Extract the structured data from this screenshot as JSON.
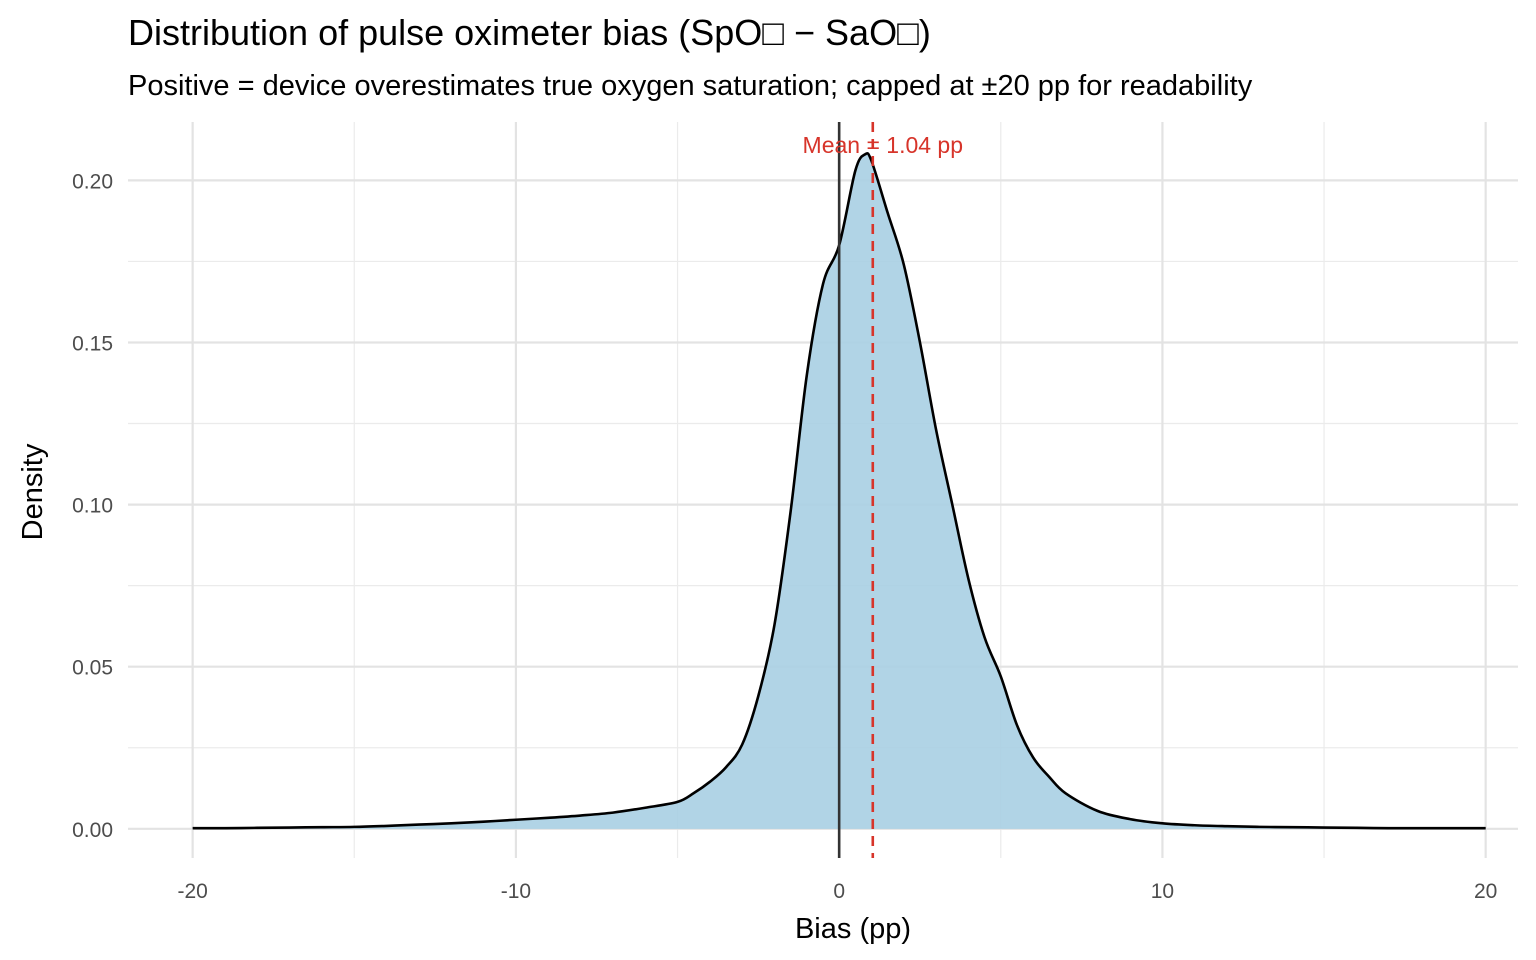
{
  "chart_data": {
    "type": "area",
    "title": "Distribution of pulse oximeter bias (SpO□ − SaO□)",
    "subtitle": "Positive = device overestimates true oxygen saturation; capped at ±20 pp for readability",
    "xlabel": "Bias (pp)",
    "ylabel": "Density",
    "xlim": [
      -22,
      21
    ],
    "ylim": [
      -0.009,
      0.218
    ],
    "x_ticks": [
      -20,
      -10,
      0,
      10,
      20
    ],
    "x_tick_labels": [
      "-20",
      "-10",
      "0",
      "10",
      "20"
    ],
    "y_ticks": [
      0,
      0.05,
      0.1,
      0.15,
      0.2
    ],
    "y_tick_labels": [
      "0.00",
      "0.05",
      "0.10",
      "0.15",
      "0.20"
    ],
    "grid": true,
    "fill_color": "#a8cfe3",
    "line_color": "#000000",
    "reference_line": {
      "x": 0,
      "color": "#333333"
    },
    "mean_line": {
      "x": 1.04,
      "color": "#d7342a",
      "style": "dashed"
    },
    "annotation": "Mean = 1.04 pp",
    "series": [
      {
        "x": [
          -20,
          -19,
          -18,
          -17,
          -16,
          -15,
          -14,
          -13,
          -12,
          -11,
          -10,
          -9,
          -8,
          -7,
          -6,
          -5,
          -4.5,
          -4,
          -3.5,
          -3,
          -2.5,
          -2,
          -1.5,
          -1,
          -0.5,
          0,
          0.5,
          0.8,
          1,
          1.5,
          2,
          2.5,
          3,
          3.5,
          4,
          4.5,
          5,
          5.5,
          6,
          6.5,
          7,
          8,
          9,
          10,
          11,
          12,
          13,
          14,
          15,
          16,
          17,
          18,
          19,
          20
        ],
        "y": [
          0.0002,
          0.0002,
          0.0003,
          0.0004,
          0.0005,
          0.0006,
          0.0009,
          0.0013,
          0.0017,
          0.0022,
          0.0028,
          0.0034,
          0.0041,
          0.005,
          0.0065,
          0.0083,
          0.011,
          0.0145,
          0.019,
          0.026,
          0.041,
          0.063,
          0.098,
          0.14,
          0.168,
          0.18,
          0.203,
          0.208,
          0.206,
          0.19,
          0.174,
          0.15,
          0.123,
          0.1,
          0.077,
          0.059,
          0.047,
          0.032,
          0.022,
          0.016,
          0.011,
          0.0055,
          0.003,
          0.0017,
          0.0011,
          0.0008,
          0.0006,
          0.0005,
          0.0004,
          0.0003,
          0.0002,
          0.0002,
          0.0002,
          0.0002
        ]
      }
    ]
  }
}
